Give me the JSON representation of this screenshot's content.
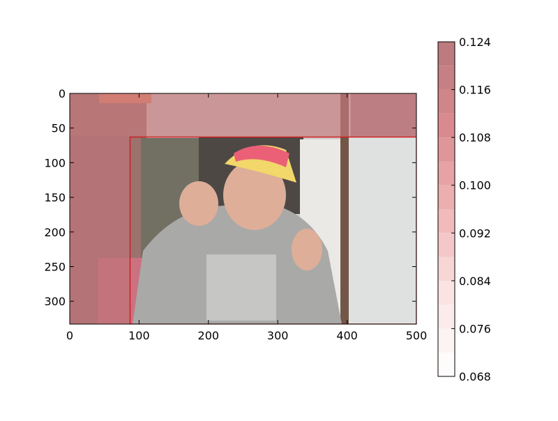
{
  "chart_data": {
    "type": "heatmap",
    "title": "",
    "xlabel": "",
    "ylabel": "",
    "image_size": {
      "width": 500,
      "height": 333
    },
    "xlim": [
      0,
      500
    ],
    "ylim": [
      333,
      0
    ],
    "xticks": [
      0,
      100,
      200,
      300,
      400,
      500
    ],
    "yticks": [
      0,
      50,
      100,
      150,
      200,
      250,
      300
    ],
    "image_content": "photo-man-pink-cap-gray-sweatshirt",
    "highlight_box": {
      "x0": 87,
      "y0": 63,
      "x1": 500,
      "y1": 333,
      "edge_color": "#cc2222"
    },
    "overlay_regions": [
      {
        "x0": 0,
        "y0": 0,
        "x1": 500,
        "y1": 63,
        "value": 0.116
      },
      {
        "x0": 405,
        "y0": 0,
        "x1": 500,
        "y1": 63,
        "value": 0.124
      },
      {
        "x0": 0,
        "y0": 63,
        "x1": 87,
        "y1": 333,
        "value": 0.12
      },
      {
        "x0": 87,
        "y0": 63,
        "x1": 500,
        "y1": 333,
        "value": 0.068
      }
    ],
    "colorbar": {
      "min": 0.068,
      "max": 0.124,
      "levels": [
        0.068,
        0.072,
        0.076,
        0.08,
        0.084,
        0.088,
        0.092,
        0.096,
        0.1,
        0.104,
        0.108,
        0.112,
        0.116,
        0.12,
        0.124
      ],
      "tick_values": [
        0.068,
        0.076,
        0.084,
        0.092,
        0.1,
        0.108,
        0.116,
        0.124
      ],
      "tick_labels": [
        "0.068",
        "0.076",
        "0.084",
        "0.092",
        "0.100",
        "0.108",
        "0.116",
        "0.124"
      ],
      "colormap": [
        "#ffffff",
        "#fbe3e3",
        "#efb4b4",
        "#d98a8e",
        "#b8777c"
      ]
    }
  }
}
